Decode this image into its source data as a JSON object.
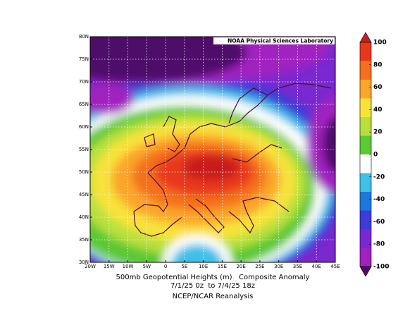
{
  "map": {
    "credit": "NOAA Physical Sciences Laboratory",
    "lat_ticks": [
      "30N",
      "35N",
      "40N",
      "45N",
      "50N",
      "55N",
      "60N",
      "65N",
      "70N",
      "75N",
      "80N"
    ],
    "lon_ticks": [
      "20W",
      "15W",
      "10W",
      "5W",
      "0",
      "5E",
      "10E",
      "15E",
      "20E",
      "25E",
      "30E",
      "35E",
      "40E",
      "45E"
    ],
    "colorbar": {
      "ticks": [
        100,
        80,
        60,
        40,
        20,
        0,
        -20,
        -40,
        -60,
        -80,
        -100
      ],
      "colors": [
        "#c81e1e",
        "#e8381c",
        "#f5701e",
        "#fba52a",
        "#f8e23a",
        "#b8e03c",
        "#5cc834",
        "#ffffff",
        "#40c0e8",
        "#1e78dc",
        "#3c3cd8",
        "#7a28d0",
        "#a020c0",
        "#50086a"
      ]
    }
  },
  "caption": [
    "500mb Geopotential Heights (m)   Composite Anomaly",
    "7/1/25 0z  to 7/4/25 18z",
    "NCEP/NCAR Reanalysis"
  ]
}
